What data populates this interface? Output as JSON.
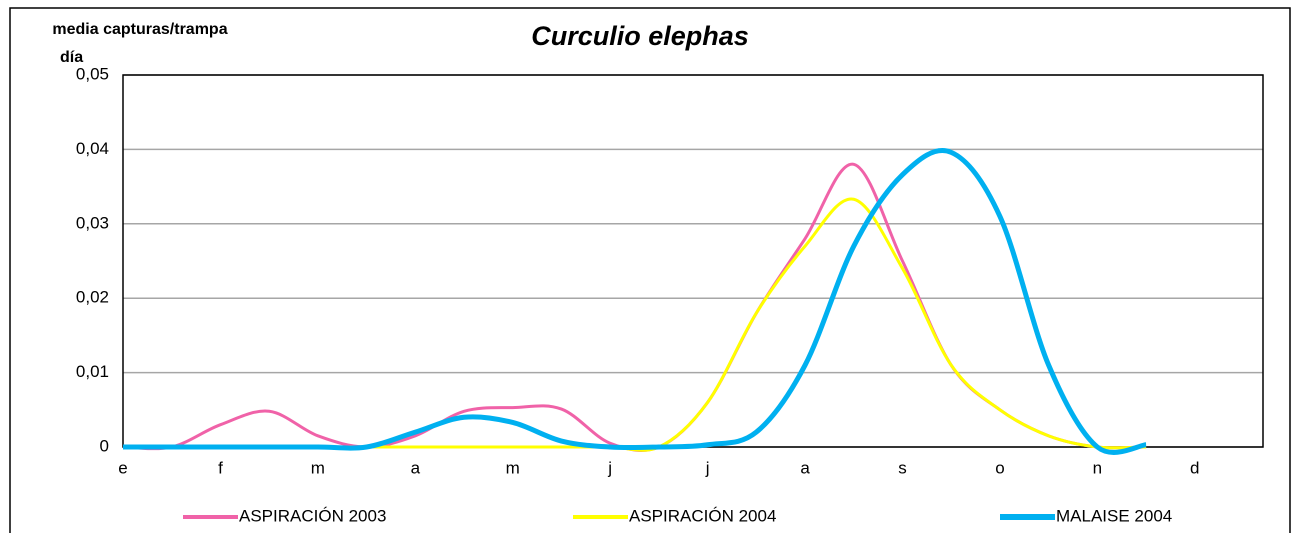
{
  "chart_data": {
    "type": "line",
    "title": "Curculio elephas",
    "ylabel": [
      "media capturas/trampa",
      "día"
    ],
    "x": [
      0,
      0.5,
      1,
      1.5,
      2,
      2.5,
      3,
      3.5,
      4,
      4.5,
      5,
      5.5,
      6,
      6.5,
      7,
      7.5,
      8,
      8.5,
      9,
      9.5,
      10,
      10.5
    ],
    "xlim": [
      0,
      11.7
    ],
    "xticks": [
      {
        "value": 0,
        "label": "e"
      },
      {
        "value": 1,
        "label": "f"
      },
      {
        "value": 2,
        "label": "m"
      },
      {
        "value": 3,
        "label": "a"
      },
      {
        "value": 4,
        "label": "m"
      },
      {
        "value": 5,
        "label": "j"
      },
      {
        "value": 6,
        "label": "j"
      },
      {
        "value": 7,
        "label": "a"
      },
      {
        "value": 8,
        "label": "s"
      },
      {
        "value": 9,
        "label": "o"
      },
      {
        "value": 10,
        "label": "n"
      },
      {
        "value": 11,
        "label": "d"
      }
    ],
    "ylim": [
      0,
      0.05
    ],
    "yticks": [
      0,
      {
        "value": 0.01,
        "label": "0,01"
      },
      {
        "value": 0.02,
        "label": "0,02"
      },
      {
        "value": 0.03,
        "label": "0,03"
      },
      {
        "value": 0.04,
        "label": "0,04"
      },
      {
        "value": 0.05,
        "label": "0,05"
      }
    ],
    "grid": true,
    "legend": "bottom",
    "series": [
      {
        "name": "ASPIRACIÓN 2003",
        "color": "#f062a8",
        "width": 3,
        "values": [
          0,
          0,
          0.003,
          0.0048,
          0.0015,
          0,
          0.0015,
          0.0048,
          0.0053,
          0.0051,
          0.0005,
          0,
          0.006,
          0.018,
          0.028,
          0.038,
          0.025,
          0.011,
          0.005,
          0.0015,
          0,
          0
        ]
      },
      {
        "name": "ASPIRACIÓN 2004",
        "color": "#ffff00",
        "width": 3,
        "values": [
          0,
          0,
          0,
          0,
          0,
          0,
          0,
          0,
          0,
          0,
          0,
          0,
          0.006,
          0.018,
          0.027,
          0.0333,
          0.024,
          0.011,
          0.005,
          0.0015,
          0,
          0
        ]
      },
      {
        "name": "MALAISE 2004",
        "color": "#00b0f0",
        "width": 5,
        "values": [
          0,
          0,
          0,
          0,
          0,
          0,
          0.002,
          0.004,
          0.0033,
          0.0008,
          0,
          0,
          0.0003,
          0.002,
          0.011,
          0.027,
          0.0366,
          0.0396,
          0.031,
          0.011,
          0,
          0.0003
        ]
      }
    ]
  }
}
